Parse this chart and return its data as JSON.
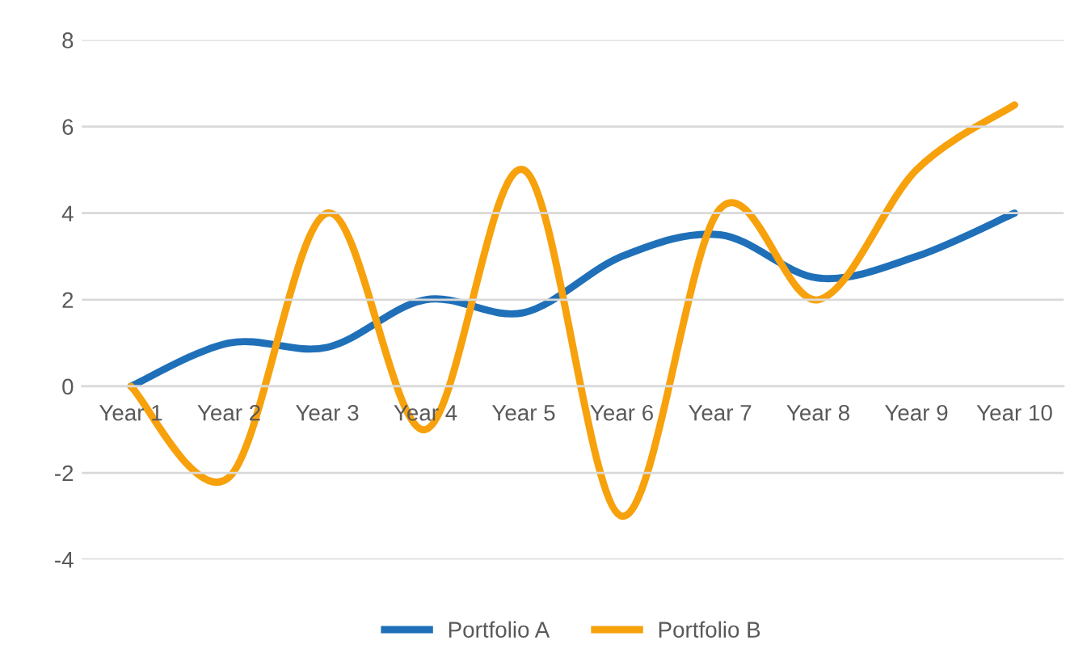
{
  "chart_data": {
    "type": "line",
    "categories": [
      "Year 1",
      "Year 2",
      "Year 3",
      "Year 4",
      "Year 5",
      "Year 6",
      "Year 7",
      "Year 8",
      "Year 9",
      "Year 10"
    ],
    "series": [
      {
        "name": "Portfolio A",
        "color": "#1f70b8",
        "values": [
          0,
          1,
          0.9,
          2,
          1.7,
          3,
          3.5,
          2.5,
          3,
          4
        ]
      },
      {
        "name": "Portfolio B",
        "color": "#f7a10c",
        "values": [
          0,
          -2.1,
          4,
          -1,
          5,
          -3,
          4.1,
          2,
          5,
          6.5
        ]
      }
    ],
    "ylim": [
      -4,
      8
    ],
    "yticks": [
      -4,
      -2,
      0,
      2,
      4,
      6,
      8
    ],
    "grid": "y",
    "legend": "bottom",
    "marker": "none",
    "line_style": "solid"
  }
}
